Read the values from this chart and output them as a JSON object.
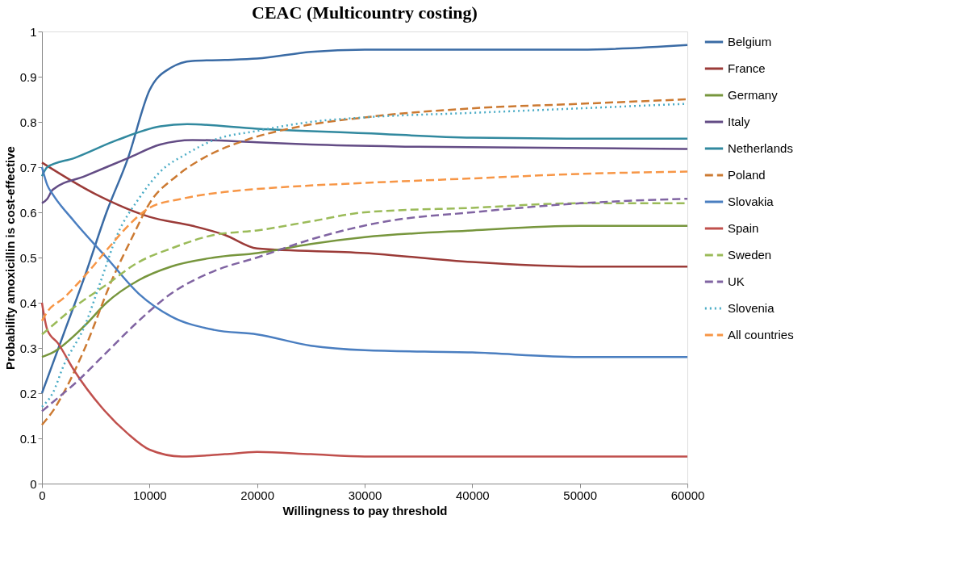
{
  "chart_data": {
    "type": "line",
    "title": "CEAC (Multicountry costing)",
    "xlabel": "Willingness to pay threshold",
    "ylabel": "Probability amoxicillin is cost-effective",
    "xlim": [
      0,
      60000
    ],
    "xticks": [
      0,
      10000,
      20000,
      30000,
      40000,
      50000,
      60000
    ],
    "ylim": [
      0,
      1
    ],
    "yticks": [
      0,
      0.1,
      0.2,
      0.3,
      0.4,
      0.5,
      0.6,
      0.7,
      0.8,
      0.9,
      1
    ],
    "grid": false,
    "legend": "right",
    "series": [
      {
        "name": "Belgium",
        "color": "#3a6ba5",
        "line_style": "solid",
        "x": [
          0,
          2000,
          4000,
          6000,
          8000,
          10000,
          12000,
          14000,
          17000,
          20000,
          25000,
          30000,
          40000,
          50000,
          60000
        ],
        "values": [
          0.2,
          0.33,
          0.46,
          0.6,
          0.72,
          0.87,
          0.92,
          0.935,
          0.937,
          0.94,
          0.955,
          0.96,
          0.96,
          0.96,
          0.97
        ]
      },
      {
        "name": "France",
        "color": "#9b3b38",
        "line_style": "solid",
        "x": [
          0,
          5000,
          10000,
          14000,
          17000,
          20000,
          30000,
          40000,
          50000,
          60000
        ],
        "values": [
          0.71,
          0.64,
          0.59,
          0.57,
          0.55,
          0.52,
          0.51,
          0.49,
          0.48,
          0.48
        ]
      },
      {
        "name": "Germany",
        "color": "#77963d",
        "line_style": "solid",
        "x": [
          0,
          1000,
          4000,
          6000,
          9000,
          12000,
          16000,
          20000,
          25000,
          30000,
          40000,
          50000,
          60000
        ],
        "values": [
          0.28,
          0.29,
          0.35,
          0.4,
          0.45,
          0.48,
          0.5,
          0.51,
          0.53,
          0.545,
          0.56,
          0.57,
          0.57
        ]
      },
      {
        "name": "Italy",
        "color": "#634c85",
        "line_style": "solid",
        "x": [
          0,
          500,
          1000,
          4000,
          8000,
          11000,
          14000,
          20000,
          25000,
          35000,
          60000
        ],
        "values": [
          0.62,
          0.63,
          0.65,
          0.68,
          0.72,
          0.75,
          0.76,
          0.755,
          0.75,
          0.745,
          0.74
        ]
      },
      {
        "name": "Netherlands",
        "color": "#31899f",
        "line_style": "solid",
        "x": [
          0,
          500,
          3000,
          7000,
          11000,
          13500,
          20000,
          30000,
          40000,
          50000,
          60000
        ],
        "values": [
          0.68,
          0.7,
          0.72,
          0.76,
          0.79,
          0.795,
          0.785,
          0.775,
          0.765,
          0.763,
          0.763
        ]
      },
      {
        "name": "Poland",
        "color": "#cc7a32",
        "line_style": "dashed",
        "x": [
          0,
          1000,
          2000,
          4000,
          6500,
          8500,
          10000,
          12500,
          15000,
          19000,
          24000,
          30000,
          40000,
          50000,
          60000
        ],
        "values": [
          0.13,
          0.16,
          0.2,
          0.3,
          0.45,
          0.55,
          0.62,
          0.68,
          0.72,
          0.76,
          0.79,
          0.81,
          0.83,
          0.84,
          0.85
        ]
      },
      {
        "name": "Slovakia",
        "color": "#4a7ec0",
        "line_style": "solid",
        "x": [
          0,
          500,
          1000,
          3000,
          6000,
          9000,
          12000,
          16000,
          20000,
          25000,
          30000,
          40000,
          50000,
          60000
        ],
        "values": [
          0.7,
          0.66,
          0.64,
          0.58,
          0.5,
          0.42,
          0.37,
          0.34,
          0.33,
          0.305,
          0.295,
          0.29,
          0.28,
          0.28
        ]
      },
      {
        "name": "Spain",
        "color": "#c0504d",
        "line_style": "solid",
        "x": [
          0,
          500,
          1500,
          3000,
          5500,
          8000,
          10000,
          13000,
          17000,
          20000,
          25000,
          30000,
          60000
        ],
        "values": [
          0.4,
          0.34,
          0.31,
          0.25,
          0.17,
          0.11,
          0.075,
          0.06,
          0.065,
          0.07,
          0.065,
          0.06,
          0.06
        ]
      },
      {
        "name": "Sweden",
        "color": "#9bbb59",
        "line_style": "dashed",
        "x": [
          0,
          1000,
          3000,
          6000,
          9000,
          12000,
          16000,
          20000,
          25000,
          30000,
          40000,
          50000,
          60000
        ],
        "values": [
          0.33,
          0.35,
          0.39,
          0.44,
          0.49,
          0.52,
          0.55,
          0.56,
          0.58,
          0.6,
          0.61,
          0.62,
          0.62
        ]
      },
      {
        "name": "UK",
        "color": "#8064a2",
        "line_style": "dashed",
        "x": [
          0,
          1000,
          3000,
          6000,
          9000,
          12000,
          16000,
          20000,
          25000,
          32000,
          40000,
          50000,
          60000
        ],
        "values": [
          0.16,
          0.18,
          0.22,
          0.29,
          0.36,
          0.42,
          0.47,
          0.5,
          0.54,
          0.58,
          0.6,
          0.62,
          0.63
        ]
      },
      {
        "name": "Slovenia",
        "color": "#4bacc6",
        "line_style": "dotted",
        "x": [
          0,
          1000,
          2000,
          4000,
          5500,
          7000,
          9000,
          11000,
          13500,
          16000,
          20000,
          25000,
          30000,
          40000,
          50000,
          60000
        ],
        "values": [
          0.17,
          0.2,
          0.26,
          0.35,
          0.45,
          0.55,
          0.63,
          0.69,
          0.73,
          0.76,
          0.78,
          0.8,
          0.81,
          0.82,
          0.83,
          0.84
        ]
      },
      {
        "name": "All countries",
        "color": "#f79646",
        "line_style": "dashed",
        "x": [
          0,
          500,
          2000,
          4000,
          6500,
          8000,
          10000,
          13000,
          17000,
          22000,
          30000,
          40000,
          50000,
          60000
        ],
        "values": [
          0.36,
          0.38,
          0.41,
          0.46,
          0.53,
          0.57,
          0.61,
          0.63,
          0.645,
          0.655,
          0.665,
          0.675,
          0.685,
          0.69
        ]
      }
    ]
  }
}
